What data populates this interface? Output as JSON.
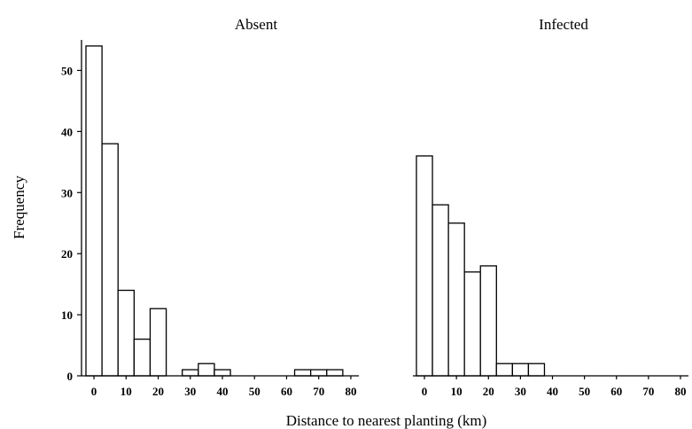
{
  "chart_data": {
    "type": "bar",
    "xlabel": "Distance to nearest planting (km)",
    "ylabel": "Frequency",
    "bin_width": 5,
    "xlim": [
      -2.5,
      82.5
    ],
    "ylim": [
      0,
      55
    ],
    "x_ticks": [
      0,
      10,
      20,
      30,
      40,
      50,
      60,
      70,
      80
    ],
    "y_ticks": [
      0,
      10,
      20,
      30,
      40,
      50
    ],
    "grid": false,
    "legend": "none",
    "bar_fill": "#ffffff",
    "bar_stroke": "#000000",
    "panels": [
      {
        "title": "Absent",
        "bin_starts": [
          -2.5,
          2.5,
          7.5,
          12.5,
          17.5,
          22.5,
          27.5,
          32.5,
          37.5,
          42.5,
          47.5,
          52.5,
          57.5,
          62.5,
          67.5,
          72.5,
          77.5
        ],
        "values": [
          54,
          38,
          14,
          6,
          11,
          0,
          1,
          2,
          1,
          0,
          0,
          0,
          0,
          1,
          1,
          1,
          0
        ]
      },
      {
        "title": "Infected",
        "bin_starts": [
          -2.5,
          2.5,
          7.5,
          12.5,
          17.5,
          22.5,
          27.5,
          32.5,
          37.5,
          42.5,
          47.5,
          52.5,
          57.5,
          62.5,
          67.5,
          72.5,
          77.5
        ],
        "values": [
          36,
          28,
          25,
          17,
          18,
          2,
          2,
          2,
          0,
          0,
          0,
          0,
          0,
          0,
          0,
          0,
          0
        ]
      }
    ]
  }
}
